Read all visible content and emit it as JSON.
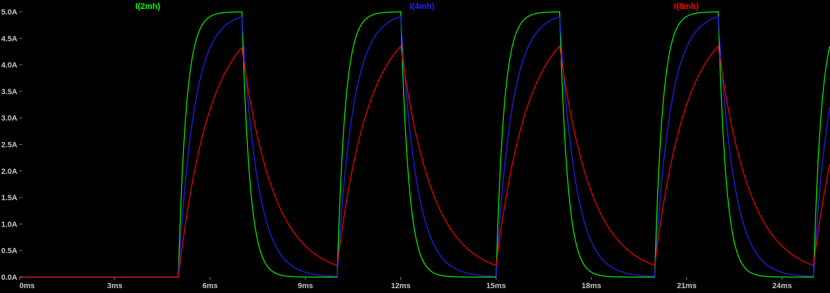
{
  "chart_data": {
    "type": "line",
    "title": "",
    "background_color": "#000000",
    "axis_text_color": "#C8C8C8",
    "tick_color": "#808080",
    "x_axis": {
      "unit": "ms",
      "min_ms": 0,
      "max_ms": 25.5,
      "tick_step_ms": 3,
      "tick_labels": [
        "0ms",
        "3ms",
        "6ms",
        "9ms",
        "12ms",
        "15ms",
        "18ms",
        "21ms",
        "24ms"
      ]
    },
    "y_axis": {
      "unit": "A",
      "min_A": 0,
      "max_A": 5,
      "tick_step_A": 0.5,
      "tick_labels": [
        "5.0A",
        "4.5A",
        "4.0A",
        "3.5A",
        "3.0A",
        "2.5A",
        "2.0A",
        "1.5A",
        "1.0A",
        "0.5A",
        "0.0A"
      ]
    },
    "series": [
      {
        "label": "I(2mh)",
        "inductance": "2mH",
        "color": "#00FF00",
        "tau_ms": 0.25,
        "peak_A": 5.0
      },
      {
        "label": "I(4mh)",
        "inductance": "4mH",
        "color": "#2222FF",
        "tau_ms": 0.5,
        "peak_A": 4.9
      },
      {
        "label": "I(8mh)",
        "inductance": "8mH",
        "color": "#FF0000",
        "tau_ms": 1.0,
        "peak_A": 4.35
      }
    ],
    "pulse": {
      "delay_ms": 5,
      "on_ms": 2,
      "period_ms": 5,
      "drive_peak_A": 5
    },
    "legend_position": "top",
    "grid": false
  }
}
